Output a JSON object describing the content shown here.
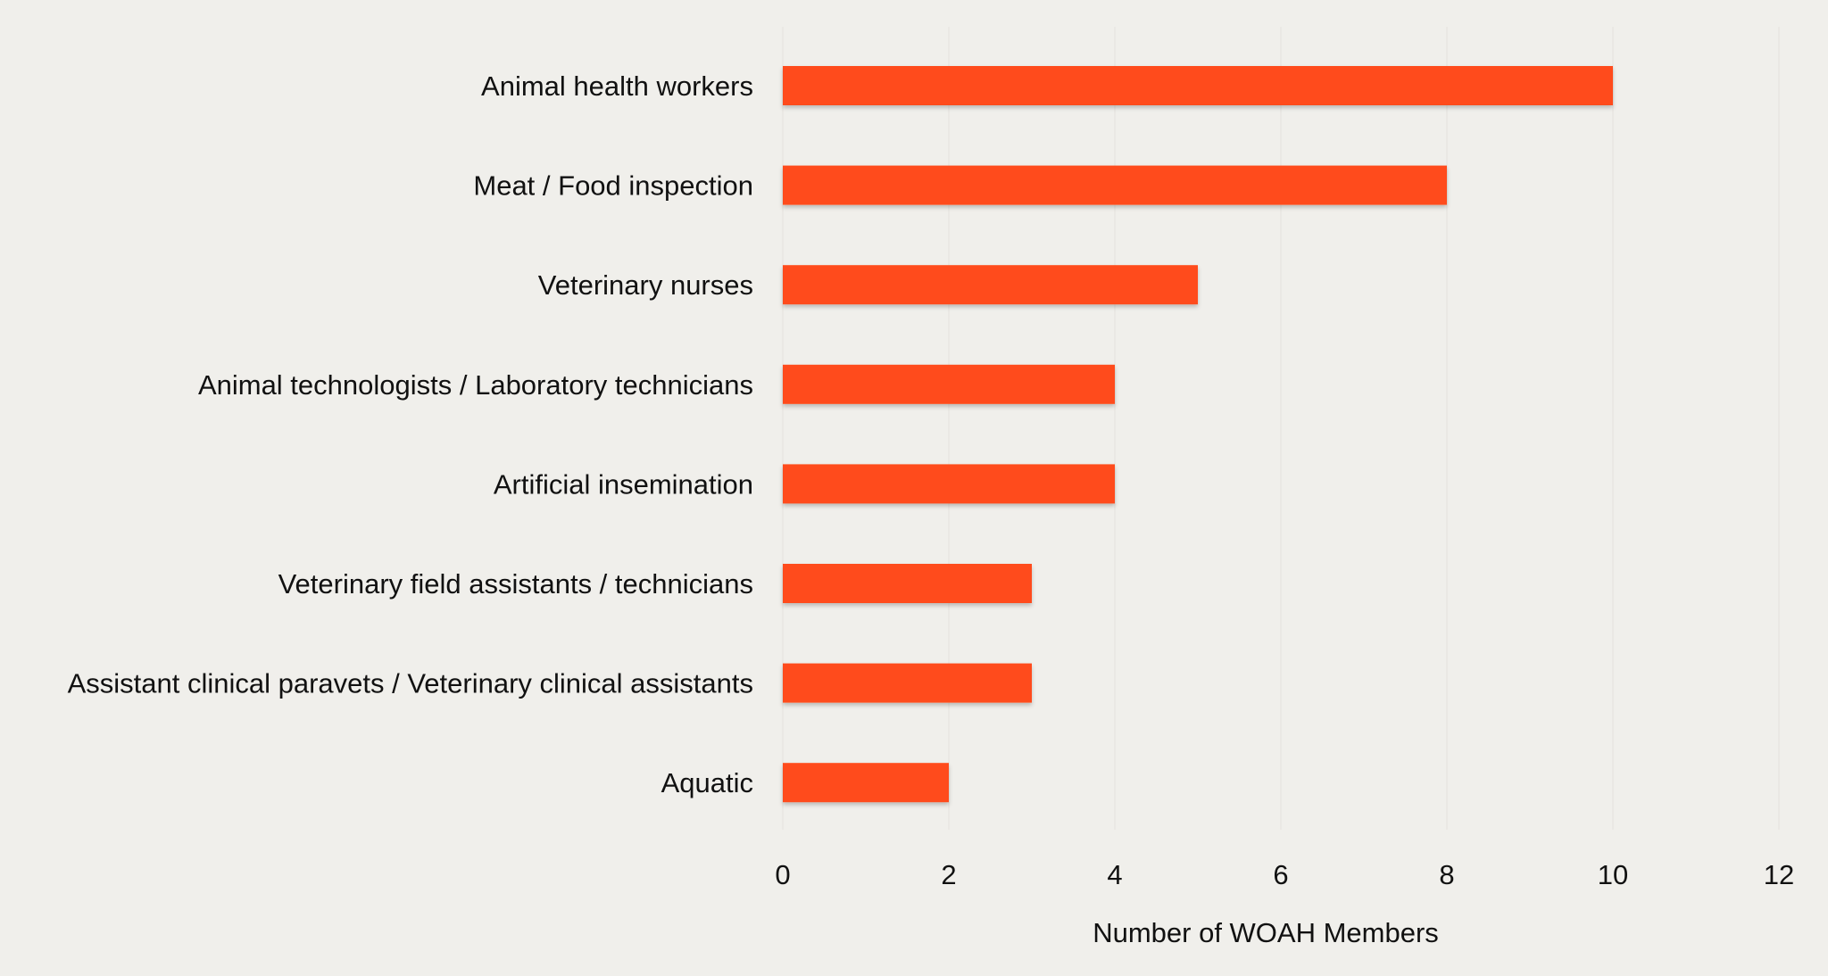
{
  "chart_data": {
    "type": "bar",
    "orientation": "horizontal",
    "categories": [
      "Animal health workers",
      "Meat / Food inspection",
      "Veterinary nurses",
      "Animal technologists / Laboratory technicians",
      "Artificial insemination",
      "Veterinary field assistants / technicians",
      "Assistant clinical paravets / Veterinary clinical assistants",
      "Aquatic"
    ],
    "values": [
      10,
      8,
      5,
      4,
      4,
      3,
      3,
      2
    ],
    "title": "",
    "xlabel": "Number of WOAH Members",
    "ylabel": "",
    "xlim": [
      0,
      12
    ],
    "xticks": [
      "0",
      "2",
      "4",
      "6",
      "8",
      "10",
      "12"
    ],
    "grid": "vertical",
    "legend": "none",
    "colors": {
      "bar": "#ff4b1a",
      "background": "#f0efeb",
      "text": "#111111"
    }
  }
}
